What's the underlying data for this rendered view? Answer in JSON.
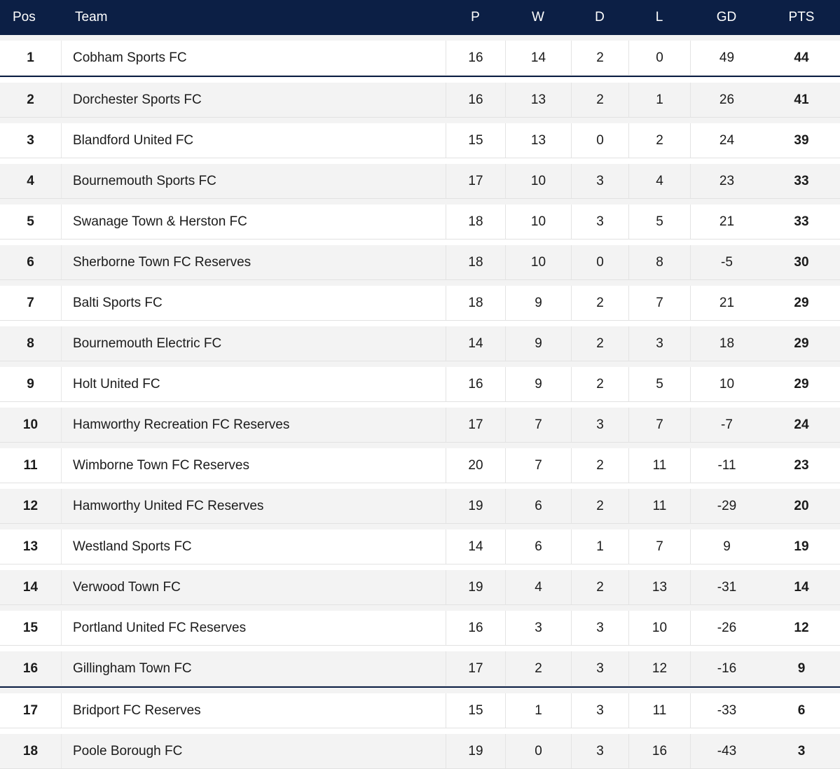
{
  "header": {
    "pos": "Pos",
    "team": "Team",
    "p": "P",
    "w": "W",
    "d": "D",
    "l": "L",
    "gd": "GD",
    "pts": "PTS"
  },
  "rows": [
    {
      "pos": "1",
      "team": "Cobham Sports FC",
      "p": "16",
      "w": "14",
      "d": "2",
      "l": "0",
      "gd": "49",
      "pts": "44"
    },
    {
      "pos": "2",
      "team": "Dorchester Sports FC",
      "p": "16",
      "w": "13",
      "d": "2",
      "l": "1",
      "gd": "26",
      "pts": "41"
    },
    {
      "pos": "3",
      "team": "Blandford United FC",
      "p": "15",
      "w": "13",
      "d": "0",
      "l": "2",
      "gd": "24",
      "pts": "39"
    },
    {
      "pos": "4",
      "team": "Bournemouth Sports FC",
      "p": "17",
      "w": "10",
      "d": "3",
      "l": "4",
      "gd": "23",
      "pts": "33"
    },
    {
      "pos": "5",
      "team": "Swanage Town & Herston FC",
      "p": "18",
      "w": "10",
      "d": "3",
      "l": "5",
      "gd": "21",
      "pts": "33"
    },
    {
      "pos": "6",
      "team": "Sherborne Town FC Reserves",
      "p": "18",
      "w": "10",
      "d": "0",
      "l": "8",
      "gd": "-5",
      "pts": "30"
    },
    {
      "pos": "7",
      "team": "Balti Sports FC",
      "p": "18",
      "w": "9",
      "d": "2",
      "l": "7",
      "gd": "21",
      "pts": "29"
    },
    {
      "pos": "8",
      "team": "Bournemouth Electric FC",
      "p": "14",
      "w": "9",
      "d": "2",
      "l": "3",
      "gd": "18",
      "pts": "29"
    },
    {
      "pos": "9",
      "team": "Holt United FC",
      "p": "16",
      "w": "9",
      "d": "2",
      "l": "5",
      "gd": "10",
      "pts": "29"
    },
    {
      "pos": "10",
      "team": "Hamworthy Recreation FC Reserves",
      "p": "17",
      "w": "7",
      "d": "3",
      "l": "7",
      "gd": "-7",
      "pts": "24"
    },
    {
      "pos": "11",
      "team": "Wimborne Town FC Reserves",
      "p": "20",
      "w": "7",
      "d": "2",
      "l": "11",
      "gd": "-11",
      "pts": "23"
    },
    {
      "pos": "12",
      "team": "Hamworthy United FC Reserves",
      "p": "19",
      "w": "6",
      "d": "2",
      "l": "11",
      "gd": "-29",
      "pts": "20"
    },
    {
      "pos": "13",
      "team": "Westland Sports FC",
      "p": "14",
      "w": "6",
      "d": "1",
      "l": "7",
      "gd": "9",
      "pts": "19"
    },
    {
      "pos": "14",
      "team": "Verwood Town FC",
      "p": "19",
      "w": "4",
      "d": "2",
      "l": "13",
      "gd": "-31",
      "pts": "14"
    },
    {
      "pos": "15",
      "team": "Portland United FC Reserves",
      "p": "16",
      "w": "3",
      "d": "3",
      "l": "10",
      "gd": "-26",
      "pts": "12"
    },
    {
      "pos": "16",
      "team": "Gillingham Town FC",
      "p": "17",
      "w": "2",
      "d": "3",
      "l": "12",
      "gd": "-16",
      "pts": "9"
    },
    {
      "pos": "17",
      "team": "Bridport FC Reserves",
      "p": "15",
      "w": "1",
      "d": "3",
      "l": "11",
      "gd": "-33",
      "pts": "6"
    },
    {
      "pos": "18",
      "team": "Poole Borough FC",
      "p": "19",
      "w": "0",
      "d": "3",
      "l": "16",
      "gd": "-43",
      "pts": "3"
    }
  ],
  "colors": {
    "header_bg": "#0c1f45",
    "header_text": "#ffffff",
    "row_alt": "#f3f3f3",
    "divider": "#0c1f45"
  }
}
